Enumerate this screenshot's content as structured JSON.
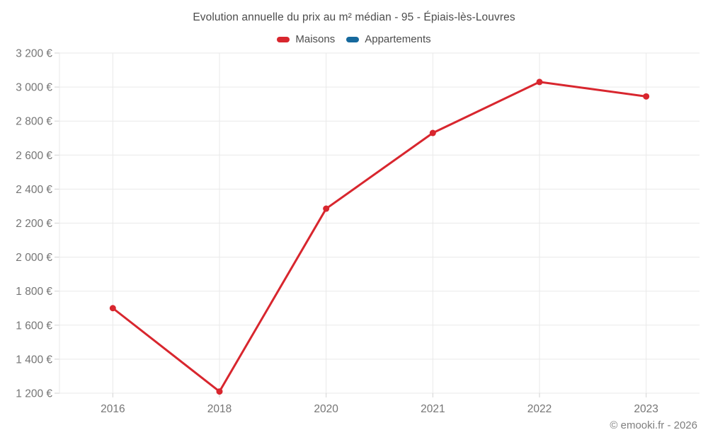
{
  "title": "Evolution annuelle du prix au m² médian - 95 - Épiais-lès-Louvres",
  "footer": "© emooki.fr - 2026",
  "colors": {
    "maisons": "#d8262e",
    "appartements": "#16699d",
    "gridline": "#e9e9e9",
    "tick": "#d2d2d2",
    "axis_text": "#757575",
    "title_text": "#4c4c4c"
  },
  "chart_data": {
    "type": "line",
    "title": "Evolution annuelle du prix au m² médian - 95 - Épiais-lès-Louvres",
    "categories": [
      "2016",
      "2018",
      "2020",
      "2021",
      "2022",
      "2023"
    ],
    "series": [
      {
        "name": "Maisons",
        "color": "#d8262e",
        "values": [
          1700,
          1210,
          2285,
          2730,
          3030,
          2945
        ]
      },
      {
        "name": "Appartements",
        "color": "#16699d",
        "values": []
      }
    ],
    "xlabel": "",
    "ylabel": "",
    "ylim": [
      1200,
      3200
    ],
    "y_tick_step": 200,
    "y_tick_labels": [
      "1 200 €",
      "1 400 €",
      "1 600 €",
      "1 800 €",
      "2 000 €",
      "2 200 €",
      "2 400 €",
      "2 600 €",
      "2 800 €",
      "3 000 €",
      "3 200 €"
    ],
    "grid": true,
    "legend_position": "top"
  }
}
